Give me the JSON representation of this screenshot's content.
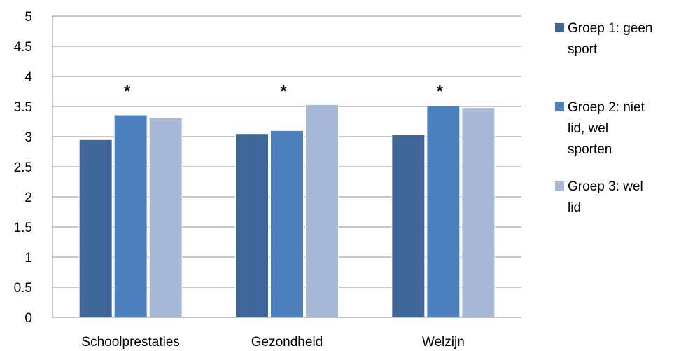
{
  "chart_data": {
    "type": "bar",
    "categories": [
      "Schoolprestaties",
      "Gezondheid",
      "Welzijn"
    ],
    "series": [
      {
        "name": "Groep 1: geen sport",
        "legend_lines": [
          "Groep 1: geen",
          "sport"
        ],
        "color": "#3E6699",
        "values": [
          2.95,
          3.05,
          3.04
        ]
      },
      {
        "name": "Groep 2: niet lid, wel sporten",
        "legend_lines": [
          "Groep 2: niet",
          "lid, wel",
          "sporten"
        ],
        "color": "#4C80BF",
        "values": [
          3.36,
          3.1,
          3.51
        ]
      },
      {
        "name": "Groep 3: wel lid",
        "legend_lines": [
          "Groep 3: wel",
          "lid"
        ],
        "color": "#A8B9D8",
        "values": [
          3.31,
          3.53,
          3.48
        ]
      }
    ],
    "annotations": [
      "*",
      "*",
      "*"
    ],
    "ylim": [
      0,
      5
    ],
    "yticks": [
      0,
      0.5,
      1,
      1.5,
      2,
      2.5,
      3,
      3.5,
      4,
      4.5,
      5
    ],
    "ytick_labels": [
      "0",
      "0.5",
      "1",
      "1.5",
      "2",
      "2.5",
      "3",
      "3.5",
      "4",
      "4.5",
      "5"
    ],
    "grid": true,
    "legend_position": "right",
    "title": "",
    "xlabel": "",
    "ylabel": ""
  }
}
